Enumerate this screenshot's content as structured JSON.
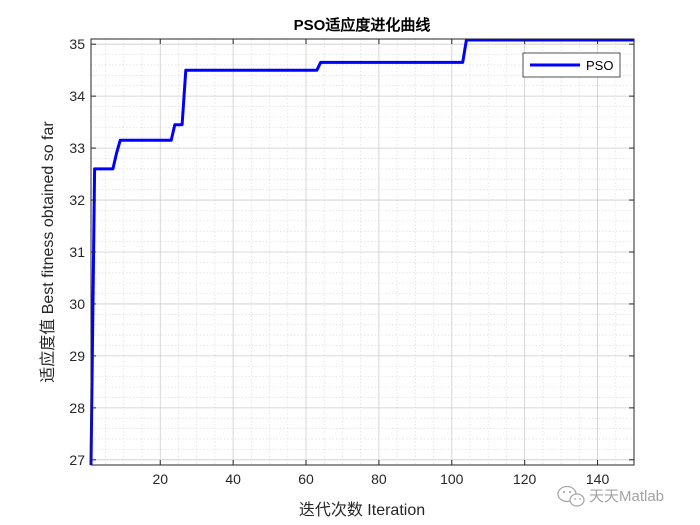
{
  "chart_data": {
    "type": "line",
    "title": "PSO适应度进化曲线",
    "xlabel": "迭代次数 Iteration",
    "ylabel": "适应度值 Best fitness obtained so far",
    "xlim": [
      1,
      150
    ],
    "ylim": [
      26.9,
      35.1
    ],
    "xticks": [
      20,
      40,
      60,
      80,
      100,
      120,
      140
    ],
    "yticks": [
      27,
      28,
      29,
      30,
      31,
      32,
      33,
      34,
      35
    ],
    "grid": true,
    "minor_grid": true,
    "legend_position": "top-right",
    "series": [
      {
        "name": "PSO",
        "color": "#0000ff",
        "x": [
          1,
          2,
          7,
          8,
          9,
          23,
          24,
          25,
          26,
          27,
          63,
          64,
          103,
          104,
          150
        ],
        "y": [
          26.9,
          32.6,
          32.6,
          32.9,
          33.15,
          33.15,
          33.45,
          33.45,
          33.45,
          34.5,
          34.5,
          34.65,
          34.65,
          35.08,
          35.08
        ]
      }
    ]
  },
  "watermark": {
    "text": "天天Matlab",
    "icon": "wechat-icon"
  }
}
